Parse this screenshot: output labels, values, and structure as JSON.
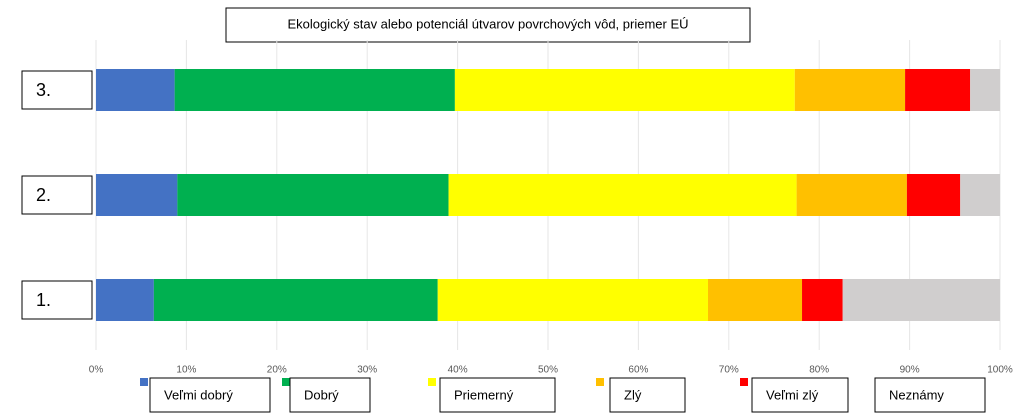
{
  "chart_data": {
    "type": "stacked-bar",
    "orientation": "horizontal",
    "title": "Ekologický stav alebo potenciál útvarov povrchových vôd, priemer EÚ",
    "categories": [
      "3.",
      "2.",
      "1."
    ],
    "series": [
      {
        "name": "Veľmi dobrý",
        "color": "#4472c4",
        "values": [
          8.7,
          9.0,
          6.4
        ]
      },
      {
        "name": "Dobrý",
        "color": "#00b050",
        "values": [
          31.0,
          30.0,
          31.4
        ]
      },
      {
        "name": "Priemerný",
        "color": "#ffff00",
        "values": [
          37.6,
          38.5,
          29.9
        ]
      },
      {
        "name": "Zlý",
        "color": "#ffc000",
        "values": [
          12.2,
          12.2,
          10.4
        ]
      },
      {
        "name": "Veľmi zlý",
        "color": "#ff0000",
        "values": [
          7.2,
          5.9,
          4.5
        ]
      },
      {
        "name": "Neznámy",
        "color": "#d0cece",
        "values": [
          3.3,
          4.4,
          17.4
        ]
      }
    ],
    "xlim": [
      0,
      100
    ],
    "xticks": [
      {
        "value": 0,
        "label": "0%"
      },
      {
        "value": 10,
        "label": "10%"
      },
      {
        "value": 20,
        "label": "20%"
      },
      {
        "value": 30,
        "label": "30%"
      },
      {
        "value": 40,
        "label": "40%"
      },
      {
        "value": 50,
        "label": "50%"
      },
      {
        "value": 60,
        "label": "60%"
      },
      {
        "value": 70,
        "label": "70%"
      },
      {
        "value": 80,
        "label": "80%"
      },
      {
        "value": 90,
        "label": "90%"
      },
      {
        "value": 100,
        "label": "100%"
      }
    ],
    "grid": true
  }
}
